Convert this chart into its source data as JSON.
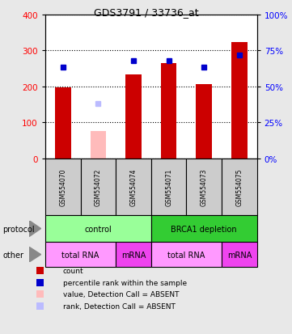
{
  "title": "GDS3791 / 33736_at",
  "samples": [
    "GSM554070",
    "GSM554072",
    "GSM554074",
    "GSM554071",
    "GSM554073",
    "GSM554075"
  ],
  "counts": [
    197,
    0,
    232,
    265,
    206,
    323
  ],
  "counts_absent": [
    0,
    75,
    0,
    0,
    0,
    0
  ],
  "percentile_ranks": [
    253,
    0,
    270,
    270,
    253,
    287
  ],
  "percentile_ranks_absent": [
    0,
    152,
    0,
    0,
    0,
    0
  ],
  "count_color": "#cc0000",
  "count_absent_color": "#ffbbbb",
  "rank_color": "#0000cc",
  "rank_absent_color": "#bbbbff",
  "ylim_left": [
    0,
    400
  ],
  "ylim_right": [
    0,
    100
  ],
  "yticks_left": [
    0,
    100,
    200,
    300,
    400
  ],
  "yticks_right": [
    0,
    25,
    50,
    75,
    100
  ],
  "ytick_labels_right": [
    "0%",
    "25%",
    "50%",
    "75%",
    "100%"
  ],
  "protocol_groups": [
    {
      "label": "control",
      "cols": [
        0,
        2
      ],
      "color": "#99ff99"
    },
    {
      "label": "BRCA1 depletion",
      "cols": [
        3,
        5
      ],
      "color": "#33cc33"
    }
  ],
  "other_groups": [
    {
      "label": "total RNA",
      "cols": [
        0,
        1
      ],
      "color": "#ff99ff"
    },
    {
      "label": "mRNA",
      "cols": [
        2,
        2
      ],
      "color": "#ee44ee"
    },
    {
      "label": "total RNA",
      "cols": [
        3,
        4
      ],
      "color": "#ff99ff"
    },
    {
      "label": "mRNA",
      "cols": [
        5,
        5
      ],
      "color": "#ee44ee"
    }
  ],
  "legend_items": [
    {
      "color": "#cc0000",
      "label": "count"
    },
    {
      "color": "#0000cc",
      "label": "percentile rank within the sample"
    },
    {
      "color": "#ffbbbb",
      "label": "value, Detection Call = ABSENT"
    },
    {
      "color": "#bbbbff",
      "label": "rank, Detection Call = ABSENT"
    }
  ],
  "sample_bg_color": "#cccccc",
  "fig_bg_color": "#e8e8e8"
}
